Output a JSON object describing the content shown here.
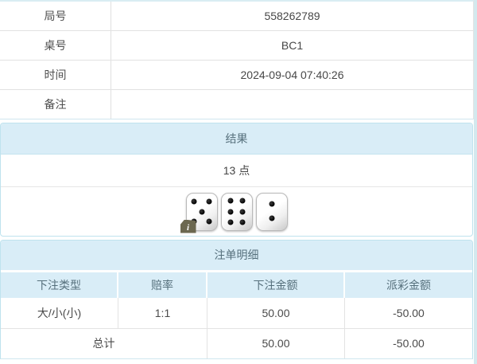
{
  "colors": {
    "header_bg": "#d9edf7",
    "panel_border": "#bfe3ee",
    "header_text": "#56707c",
    "body_text": "#4a4a4a",
    "negative_text": "#fb0f0f",
    "row_border": "#e3e3e3",
    "right_edge_strip": "#d3e9ee",
    "badge_bg": "#6c6850"
  },
  "game_info": {
    "rows": [
      {
        "label": "局号",
        "value": "558262789"
      },
      {
        "label": "桌号",
        "value": "BC1"
      },
      {
        "label": "时间",
        "value": "2024-09-04 07:40:26"
      },
      {
        "label": "备注",
        "value": ""
      }
    ]
  },
  "result": {
    "title": "结果",
    "points_label": "13 点",
    "dice_values": [
      5,
      6,
      2
    ],
    "info_badge_label": "i"
  },
  "bet_details": {
    "title": "注单明细",
    "columns": [
      "下注类型",
      "赔率",
      "下注金额",
      "派彩金额"
    ],
    "rows": [
      {
        "bet_type": "大/小(小)",
        "odds": "1:1",
        "bet_amount": "50.00",
        "payout_amount": "-50.00"
      }
    ],
    "total_row": {
      "label": "总计",
      "bet_amount": "50.00",
      "payout_amount": "-50.00"
    }
  }
}
